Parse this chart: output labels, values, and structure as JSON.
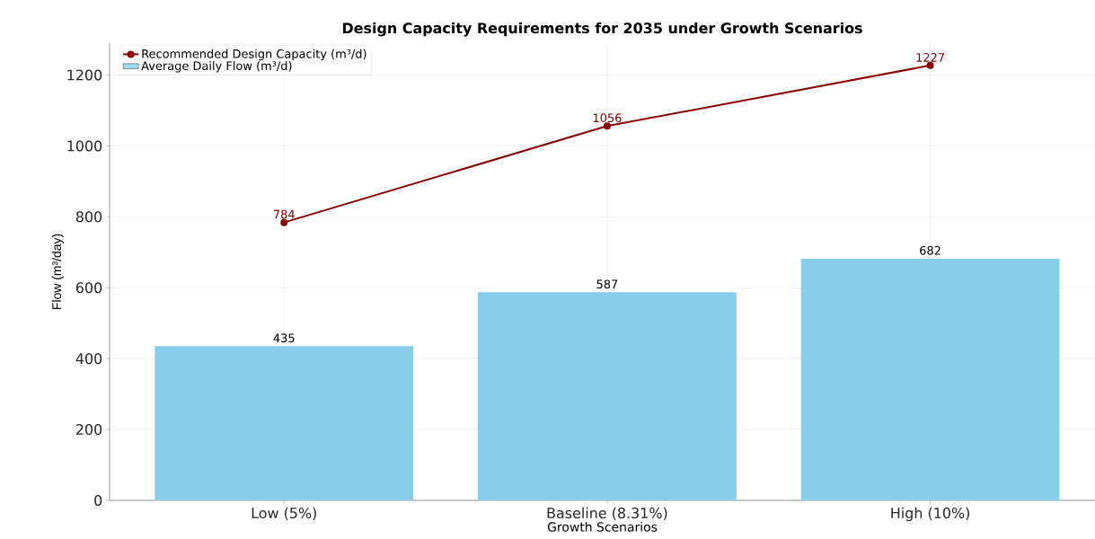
{
  "chart_data": {
    "type": "bar",
    "title": "Design Capacity Requirements for 2035 under Growth Scenarios",
    "xlabel": "Growth Scenarios",
    "ylabel": "Flow (m³/day)",
    "categories": [
      "Low (5%)",
      "Baseline (8.31%)",
      "High (10%)"
    ],
    "series": [
      {
        "name": "Average Daily Flow (m³/d)",
        "color": "#87ceeb",
        "values": [
          435,
          587,
          682
        ]
      },
      {
        "name": "Recommended Design Capacity (m³/d)",
        "type": "line",
        "color": "#8b0000",
        "marker": "circle",
        "values": [
          784,
          1056,
          1227
        ]
      }
    ],
    "ylim": [
      0,
      1290
    ],
    "yticks": [
      0,
      200,
      400,
      600,
      800,
      1000,
      1200
    ],
    "grid": true,
    "legend": "top left",
    "data_labels": true
  }
}
